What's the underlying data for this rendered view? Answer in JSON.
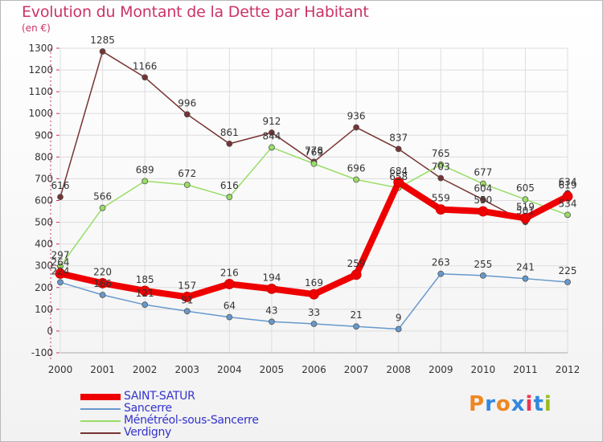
{
  "title": "Evolution du Montant de la Dette par Habitant",
  "unit_label": "(en €)",
  "logo": {
    "text": "Proxiti",
    "letter_colors": [
      "#ee8822",
      "#3388dd",
      "#ee8822",
      "#3388dd",
      "#ee3355",
      "#3388dd",
      "#99bb22"
    ]
  },
  "chart_data": {
    "type": "line",
    "x": [
      "2000",
      "2001",
      "2002",
      "2003",
      "2004",
      "2005",
      "2006",
      "2007",
      "2008",
      "2009",
      "2010",
      "2011",
      "2012"
    ],
    "ylim": [
      -100,
      1300
    ],
    "yticks": [
      "-100",
      "0",
      "100",
      "200",
      "300",
      "400",
      "500",
      "600",
      "700",
      "800",
      "900",
      "1000",
      "1100",
      "1200",
      "1300"
    ],
    "grid": true,
    "legend_position": "bottom-left",
    "series": [
      {
        "name": "SAINT-SATUR",
        "color": "#ee0000",
        "width": 8,
        "values": [
          264,
          220,
          185,
          157,
          216,
          194,
          169,
          259,
          684,
          559,
          550,
          519,
          619
        ],
        "labels": [
          "264",
          "220",
          "185",
          "157",
          "216",
          "194",
          "169",
          "259",
          "684",
          "559",
          "550",
          "519",
          "619"
        ]
      },
      {
        "name": "Sancerre",
        "color": "#6699cc",
        "width": 1.5,
        "values": [
          224,
          166,
          121,
          91,
          64,
          43,
          33,
          21,
          9,
          263,
          255,
          241,
          225
        ],
        "labels": [
          "224",
          "166",
          "121",
          "91",
          "64",
          "43",
          "33",
          "21",
          "9",
          "263",
          "255",
          "241",
          "225"
        ]
      },
      {
        "name": "Ménétréol-sous-Sancerre",
        "color": "#99dd66",
        "width": 1.5,
        "values": [
          297,
          566,
          689,
          672,
          616,
          844,
          769,
          696,
          658,
          765,
          677,
          605,
          534
        ],
        "labels": [
          "297",
          "566",
          "689",
          "672",
          "616",
          "844",
          "769",
          "696",
          "658",
          "765",
          "677",
          "605",
          "534"
        ]
      },
      {
        "name": "Verdigny",
        "color": "#773333",
        "width": 1.5,
        "values": [
          616,
          1285,
          1166,
          996,
          861,
          912,
          778,
          936,
          837,
          703,
          604,
          501,
          634
        ],
        "labels": [
          "616",
          "1285",
          "1166",
          "996",
          "861",
          "912",
          "778",
          "936",
          "837",
          "703",
          "604",
          "501",
          "634"
        ]
      }
    ]
  }
}
